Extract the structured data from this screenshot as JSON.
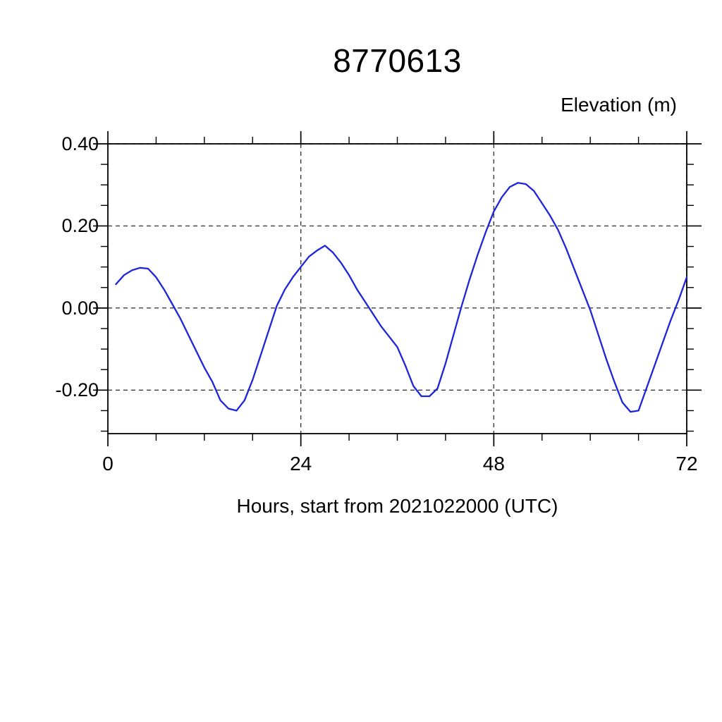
{
  "title": "8770613",
  "chart_data": {
    "type": "line",
    "title": "8770613",
    "xlabel": "Hours, start from 2021022000 (UTC)",
    "ylabel": "Elevation (m)",
    "xlim": [
      0,
      72
    ],
    "ylim": [
      -0.306,
      0.4
    ],
    "x_ticks": [
      0,
      24,
      48,
      72
    ],
    "x_tick_labels": [
      "0",
      "24",
      "48",
      "72"
    ],
    "x_minor_ticks": [
      6,
      12,
      18,
      30,
      36,
      42,
      54,
      60,
      66
    ],
    "x_grid": [
      24,
      48,
      72
    ],
    "y_ticks": [
      0.4,
      0.2,
      0.0,
      -0.2
    ],
    "y_tick_labels": [
      "0.40",
      "0.20",
      "0.00",
      "-0.20"
    ],
    "y_minor_ticks": [
      0.35,
      0.3,
      0.25,
      0.15,
      0.1,
      0.05,
      -0.05,
      -0.1,
      -0.15,
      -0.25,
      -0.3
    ],
    "grid": "dashed",
    "legend": "none",
    "line_color": "#1c24dc",
    "frame_color": "#000000",
    "grid_color": "#3c3c3c",
    "text_color": "#000000",
    "series_name": "elevation",
    "x": [
      1,
      2,
      3,
      4,
      5,
      6,
      7,
      8,
      9,
      10,
      11,
      12,
      13,
      14,
      15,
      16,
      17,
      18,
      19,
      20,
      21,
      22,
      23,
      24,
      25,
      26,
      27,
      28,
      29,
      30,
      31,
      32,
      33,
      34,
      35,
      36,
      37,
      38,
      39,
      40,
      41,
      42,
      43,
      44,
      45,
      46,
      47,
      48,
      49,
      50,
      51,
      52,
      53,
      54,
      55,
      56,
      57,
      58,
      59,
      60,
      61,
      62,
      63,
      64,
      65,
      66,
      67,
      68,
      69,
      70,
      71,
      72
    ],
    "values": [
      0.058,
      0.08,
      0.092,
      0.098,
      0.096,
      0.075,
      0.045,
      0.01,
      -0.025,
      -0.065,
      -0.105,
      -0.145,
      -0.18,
      -0.225,
      -0.245,
      -0.25,
      -0.225,
      -0.175,
      -0.115,
      -0.055,
      0.005,
      0.045,
      0.075,
      0.1,
      0.125,
      0.14,
      0.152,
      0.135,
      0.11,
      0.08,
      0.045,
      0.015,
      -0.015,
      -0.045,
      -0.07,
      -0.095,
      -0.14,
      -0.19,
      -0.215,
      -0.215,
      -0.196,
      -0.135,
      -0.065,
      0.005,
      0.07,
      0.13,
      0.185,
      0.235,
      0.27,
      0.295,
      0.305,
      0.302,
      0.285,
      0.255,
      0.225,
      0.19,
      0.145,
      0.095,
      0.045,
      -0.005,
      -0.065,
      -0.125,
      -0.18,
      -0.23,
      -0.253,
      -0.25,
      -0.195,
      -0.14,
      -0.085,
      -0.03,
      0.02,
      0.075
    ]
  }
}
